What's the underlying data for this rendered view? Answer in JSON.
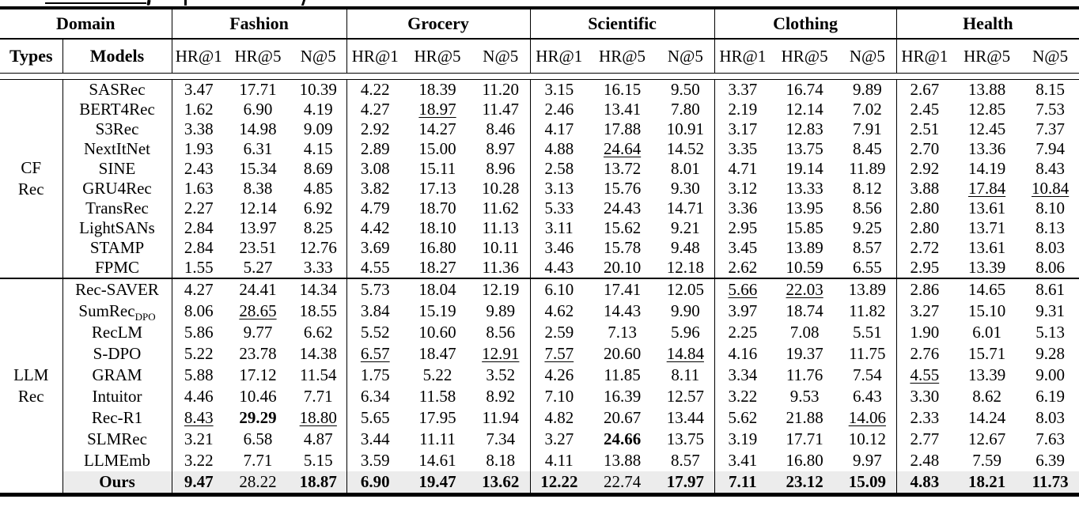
{
  "colors": {
    "highlight_bg": "#ececec",
    "rule": "#000000",
    "text": "#000000"
  },
  "table": {
    "header": {
      "domain_label": "Domain",
      "types_label": "Types",
      "models_label": "Models",
      "domains": [
        "Fashion",
        "Grocery",
        "Scientific",
        "Clothing",
        "Health"
      ],
      "metrics": [
        "HR@1",
        "HR@5",
        "N@5"
      ]
    },
    "sections": [
      {
        "type_label_lines": [
          "CF",
          "Rec"
        ],
        "rows": [
          {
            "model": "SASRec",
            "values": [
              "3.47",
              "17.71",
              "10.39",
              "4.22",
              "18.39",
              "11.20",
              "3.15",
              "16.15",
              "9.50",
              "3.37",
              "16.74",
              "9.89",
              "2.67",
              "13.88",
              "8.15"
            ],
            "bold": [],
            "underline": []
          },
          {
            "model": "BERT4Rec",
            "values": [
              "1.62",
              "6.90",
              "4.19",
              "4.27",
              "18.97",
              "11.47",
              "2.46",
              "13.41",
              "7.80",
              "2.19",
              "12.14",
              "7.02",
              "2.45",
              "12.85",
              "7.53"
            ],
            "bold": [],
            "underline": [
              4
            ]
          },
          {
            "model": "S3Rec",
            "values": [
              "3.38",
              "14.98",
              "9.09",
              "2.92",
              "14.27",
              "8.46",
              "4.17",
              "17.88",
              "10.91",
              "3.17",
              "12.83",
              "7.91",
              "2.51",
              "12.45",
              "7.37"
            ],
            "bold": [],
            "underline": []
          },
          {
            "model": "NextItNet",
            "values": [
              "1.93",
              "6.31",
              "4.15",
              "2.89",
              "15.00",
              "8.97",
              "4.88",
              "24.64",
              "14.52",
              "3.35",
              "13.75",
              "8.45",
              "2.70",
              "13.36",
              "7.94"
            ],
            "bold": [],
            "underline": [
              7
            ]
          },
          {
            "model": "SINE",
            "values": [
              "2.43",
              "15.34",
              "8.69",
              "3.08",
              "15.11",
              "8.96",
              "2.58",
              "13.72",
              "8.01",
              "4.71",
              "19.14",
              "11.89",
              "2.92",
              "14.19",
              "8.43"
            ],
            "bold": [],
            "underline": []
          },
          {
            "model": "GRU4Rec",
            "values": [
              "1.63",
              "8.38",
              "4.85",
              "3.82",
              "17.13",
              "10.28",
              "3.13",
              "15.76",
              "9.30",
              "3.12",
              "13.33",
              "8.12",
              "3.88",
              "17.84",
              "10.84"
            ],
            "bold": [],
            "underline": [
              13,
              14
            ]
          },
          {
            "model": "TransRec",
            "values": [
              "2.27",
              "12.14",
              "6.92",
              "4.79",
              "18.70",
              "11.62",
              "5.33",
              "24.43",
              "14.71",
              "3.36",
              "13.95",
              "8.56",
              "2.80",
              "13.61",
              "8.10"
            ],
            "bold": [],
            "underline": []
          },
          {
            "model": "LightSANs",
            "values": [
              "2.84",
              "13.97",
              "8.25",
              "4.42",
              "18.10",
              "11.13",
              "3.11",
              "15.62",
              "9.21",
              "2.95",
              "15.85",
              "9.25",
              "2.80",
              "13.71",
              "8.13"
            ],
            "bold": [],
            "underline": []
          },
          {
            "model": "STAMP",
            "values": [
              "2.84",
              "23.51",
              "12.76",
              "3.69",
              "16.80",
              "10.11",
              "3.46",
              "15.78",
              "9.48",
              "3.45",
              "13.89",
              "8.57",
              "2.72",
              "13.61",
              "8.03"
            ],
            "bold": [],
            "underline": []
          },
          {
            "model": "FPMC",
            "values": [
              "1.55",
              "5.27",
              "3.33",
              "4.55",
              "18.27",
              "11.36",
              "4.43",
              "20.10",
              "12.18",
              "2.62",
              "10.59",
              "6.55",
              "2.95",
              "13.39",
              "8.06"
            ],
            "bold": [],
            "underline": []
          }
        ]
      },
      {
        "type_label_lines": [
          "LLM",
          "Rec"
        ],
        "rows": [
          {
            "model": "Rec-SAVER",
            "values": [
              "4.27",
              "24.41",
              "14.34",
              "5.73",
              "18.04",
              "12.19",
              "6.10",
              "17.41",
              "12.05",
              "5.66",
              "22.03",
              "13.89",
              "2.86",
              "14.65",
              "8.61"
            ],
            "bold": [],
            "underline": [
              9,
              10
            ]
          },
          {
            "model": "SumRec",
            "sub": "DPO",
            "values": [
              "8.06",
              "28.65",
              "18.55",
              "3.84",
              "15.19",
              "9.89",
              "4.62",
              "14.43",
              "9.90",
              "3.97",
              "18.74",
              "11.82",
              "3.27",
              "15.10",
              "9.31"
            ],
            "bold": [],
            "underline": [
              1
            ]
          },
          {
            "model": "RecLM",
            "values": [
              "5.86",
              "9.77",
              "6.62",
              "5.52",
              "10.60",
              "8.56",
              "2.59",
              "7.13",
              "5.96",
              "2.25",
              "7.08",
              "5.51",
              "1.90",
              "6.01",
              "5.13"
            ],
            "bold": [],
            "underline": []
          },
          {
            "model": "S-DPO",
            "values": [
              "5.22",
              "23.78",
              "14.38",
              "6.57",
              "18.47",
              "12.91",
              "7.57",
              "20.60",
              "14.84",
              "4.16",
              "19.37",
              "11.75",
              "2.76",
              "15.71",
              "9.28"
            ],
            "bold": [],
            "underline": [
              3,
              5,
              6,
              8
            ]
          },
          {
            "model": "GRAM",
            "values": [
              "5.88",
              "17.12",
              "11.54",
              "1.75",
              "5.22",
              "3.52",
              "4.26",
              "11.85",
              "8.11",
              "3.34",
              "11.76",
              "7.54",
              "4.55",
              "13.39",
              "9.00"
            ],
            "bold": [],
            "underline": [
              12
            ]
          },
          {
            "model": "Intuitor",
            "values": [
              "4.46",
              "10.46",
              "7.71",
              "6.34",
              "11.58",
              "8.92",
              "7.10",
              "16.39",
              "12.57",
              "3.22",
              "9.53",
              "6.43",
              "3.30",
              "8.62",
              "6.19"
            ],
            "bold": [],
            "underline": []
          },
          {
            "model": "Rec-R1",
            "values": [
              "8.43",
              "29.29",
              "18.80",
              "5.65",
              "17.95",
              "11.94",
              "4.82",
              "20.67",
              "13.44",
              "5.62",
              "21.88",
              "14.06",
              "2.33",
              "14.24",
              "8.03"
            ],
            "bold": [
              1
            ],
            "underline": [
              0,
              2,
              11
            ]
          },
          {
            "model": "SLMRec",
            "values": [
              "3.21",
              "6.58",
              "4.87",
              "3.44",
              "11.11",
              "7.34",
              "3.27",
              "24.66",
              "13.75",
              "3.19",
              "17.71",
              "10.12",
              "2.77",
              "12.67",
              "7.63"
            ],
            "bold": [
              7
            ],
            "underline": []
          },
          {
            "model": "LLMEmb",
            "values": [
              "3.22",
              "7.71",
              "5.15",
              "3.59",
              "14.61",
              "8.18",
              "4.11",
              "13.88",
              "8.57",
              "3.41",
              "16.80",
              "9.97",
              "2.48",
              "7.59",
              "6.39"
            ],
            "bold": [],
            "underline": []
          },
          {
            "model": "Ours",
            "model_bold": true,
            "highlight": true,
            "values": [
              "9.47",
              "28.22",
              "18.87",
              "6.90",
              "19.47",
              "13.62",
              "12.22",
              "22.74",
              "17.97",
              "7.11",
              "23.12",
              "15.09",
              "4.83",
              "18.21",
              "11.73"
            ],
            "bold": [
              0,
              2,
              3,
              4,
              5,
              6,
              8,
              9,
              10,
              11,
              12,
              13,
              14
            ],
            "underline": []
          }
        ]
      }
    ]
  }
}
